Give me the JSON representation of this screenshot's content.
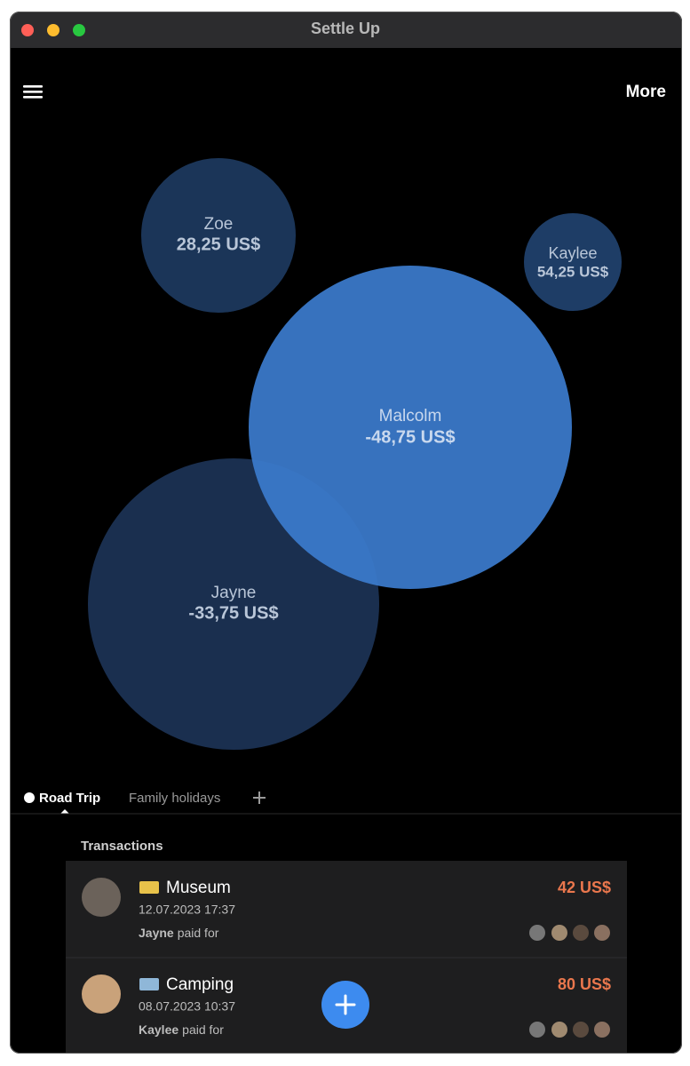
{
  "window": {
    "title": "Settle Up"
  },
  "toolbar": {
    "more": "More"
  },
  "bubbles": [
    {
      "name": "Zoe",
      "amount": "28,25 US$"
    },
    {
      "name": "Kaylee",
      "amount": "54,25 US$"
    },
    {
      "name": "Jayne",
      "amount": "-33,75 US$"
    },
    {
      "name": "Malcolm",
      "amount": "-48,75 US$"
    }
  ],
  "tabs": [
    "Road Trip",
    "Family holidays"
  ],
  "transactions": {
    "title": "Transactions",
    "items": [
      {
        "title": "Museum",
        "date": "12.07.2023 17:37",
        "payer": "Jayne",
        "paid_for": "paid for",
        "amount": "42 US$"
      },
      {
        "title": "Camping",
        "date": "08.07.2023 10:37",
        "payer": "Kaylee",
        "paid_for": "paid for",
        "amount": "80 US$"
      }
    ]
  }
}
